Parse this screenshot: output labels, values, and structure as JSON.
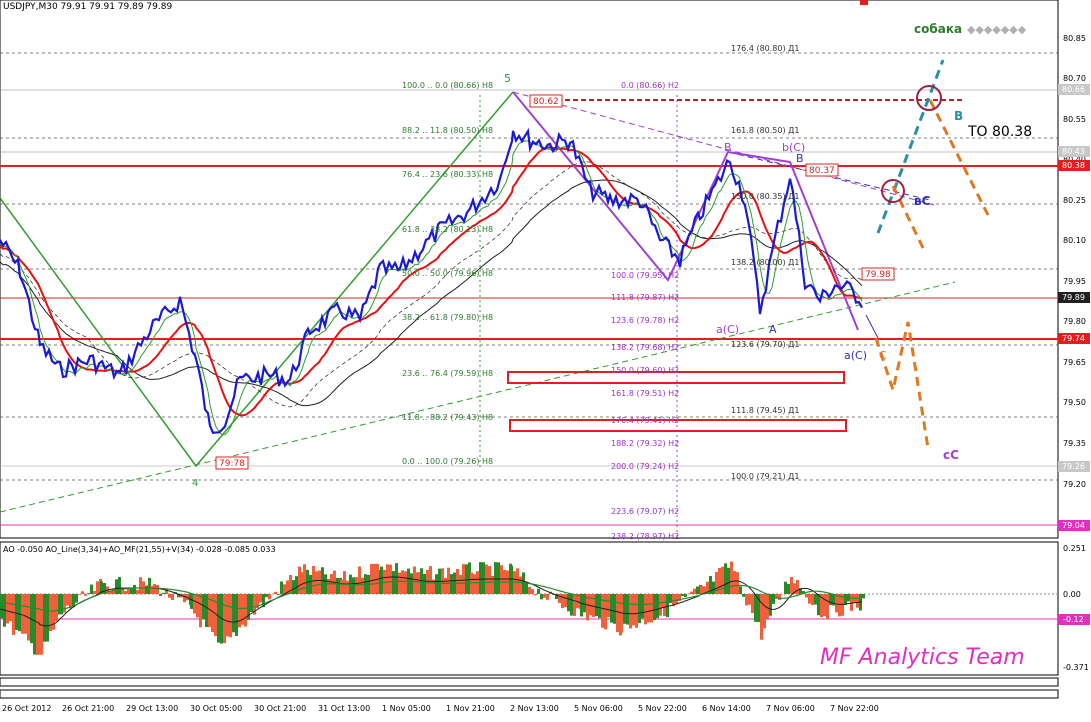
{
  "header": {
    "title": "USDJPY,M30  79.91 79.91 79.89 79.89"
  },
  "colors": {
    "background": "#ffffff",
    "price_line": "#1a1ad6",
    "ma_red": "#e81010",
    "ma_black": "#202020",
    "wave_green": "#2e9e2e",
    "wave_purple": "#a040d0",
    "forecast_orange": "#e07820",
    "forecast_teal": "#2a8fa8",
    "level_red": "#e02020",
    "ao_green": "#2a8a2a",
    "ao_red": "#f0603a",
    "watermark": "#e030c0"
  },
  "price_axis": {
    "ticks": [
      "80.85",
      "80.70",
      "80.55",
      "80.40",
      "80.25",
      "80.10",
      "79.95",
      "79.80",
      "79.65",
      "79.50",
      "79.35",
      "79.20"
    ],
    "badges": [
      {
        "text": "80.66",
        "style": "gray"
      },
      {
        "text": "80.43",
        "style": "gray"
      },
      {
        "text": "80.38",
        "style": "red"
      },
      {
        "text": "79.89",
        "style": "dark"
      },
      {
        "text": "79.74",
        "style": "red"
      },
      {
        "text": "79.26",
        "style": "gray"
      },
      {
        "text": "79.04",
        "style": "magenta"
      }
    ]
  },
  "time_axis": {
    "labels": [
      "26 Oct 2012",
      "26 Oct 21:00",
      "29 Oct 13:00",
      "30 Oct 05:00",
      "30 Oct 21:00",
      "31 Oct 13:00",
      "1 Nov 05:00",
      "1 Nov 21:00",
      "2 Nov 13:00",
      "5 Nov 06:00",
      "5 Nov 22:00",
      "6 Nov 14:00",
      "7 Nov 06:00",
      "7 Nov 22:00"
    ]
  },
  "fib_h8": [
    "100.0 .. 0.0 (80.66) H8",
    "88.2 .. 11.8 (80.50) H8",
    "76.4 .. 23.6 (80.33) H8",
    "61.8 .. 38.2 (80.13) H8",
    "50.0 .. 50.0 (79.96) H8",
    "38.2 .. 61.8 (79.80) H8",
    "23.6 .. 76.4 (79.59) H8",
    "11.8 .. 88.2 (79.43) H8",
    "0.0 .. 100.0 (79.26) H8"
  ],
  "fib_h2": [
    "0.0 (80.66) H2",
    "100.0 (79.95) H2",
    "111.8 (79.87) H2",
    "123.6 (79.78) H2",
    "138.2 (79.68) H2",
    "150.0 (79.60) H2",
    "161.8 (79.51) H2",
    "176.4 (79.41) H2",
    "188.2 (79.32) H2",
    "200.0 (79.24) H2",
    "223.6 (79.07) H2",
    "238.2 (78.97) H2"
  ],
  "fib_d1": [
    "176.4 (80.80) Д1",
    "161.8 (80.50) Д1",
    "150.0 (80.35) Д1",
    "138.2 (80.00) Д1",
    "123.6 (79.70) Д1",
    "111.8 (79.45) Д1",
    "100.0 (79.21) Д1"
  ],
  "wave_labels": {
    "five": "5",
    "four": "4",
    "b_top": "B",
    "bc": "b(C)",
    "b2": "B",
    "ac1": "a(C)",
    "a": "A",
    "ac2": "a(C)",
    "c": "C",
    "b_forecast": "B",
    "vc": "вС",
    "cc": "cC"
  },
  "price_tags": {
    "tag_8062": "80.62",
    "tag_8037": "80.37",
    "tag_7998": "79.98",
    "tag_7978": "79:78"
  },
  "annotations": {
    "target": "TO 80.38",
    "sobaka": "собака",
    "sobaka_diamonds": "◆◆◆◆◆◆◆"
  },
  "indicator": {
    "label": "AO -0.050  AO_Line(3,34)+AO_MF(21,55)+V(34) -0.028 -0.085 0.033",
    "axis_ticks": [
      "0.251",
      "0.00",
      "-0.371"
    ],
    "badge": "-0.12"
  },
  "watermark": "MF Analytics Team"
}
